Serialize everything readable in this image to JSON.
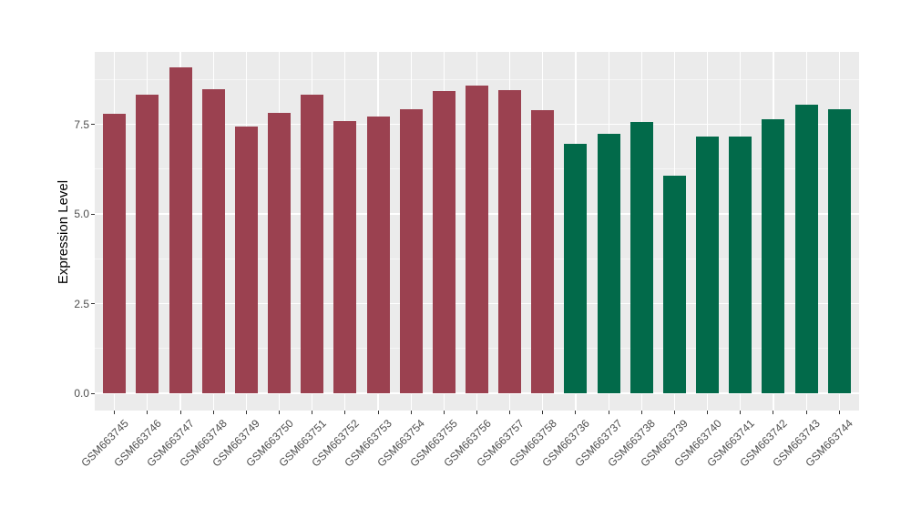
{
  "chart_data": {
    "type": "bar",
    "title": "",
    "xlabel": "",
    "ylabel": "Expression Level",
    "legend": "none",
    "grid": "on",
    "categories": [
      "GSM663745",
      "GSM663746",
      "GSM663747",
      "GSM663748",
      "GSM663749",
      "GSM663750",
      "GSM663751",
      "GSM663752",
      "GSM663753",
      "GSM663754",
      "GSM663755",
      "GSM663756",
      "GSM663757",
      "GSM663758",
      "GSM663736",
      "GSM663737",
      "GSM663738",
      "GSM663739",
      "GSM663740",
      "GSM663741",
      "GSM663742",
      "GSM663743",
      "GSM663744"
    ],
    "values": [
      7.8,
      8.32,
      9.08,
      8.47,
      7.43,
      7.82,
      8.32,
      7.59,
      7.71,
      7.92,
      8.43,
      8.57,
      8.45,
      7.89,
      6.95,
      7.24,
      7.56,
      6.06,
      7.16,
      7.16,
      7.65,
      8.04,
      7.93
    ],
    "bar_groups": [
      "maroon",
      "maroon",
      "maroon",
      "maroon",
      "maroon",
      "maroon",
      "maroon",
      "maroon",
      "maroon",
      "maroon",
      "maroon",
      "maroon",
      "maroon",
      "maroon",
      "green",
      "green",
      "green",
      "green",
      "green",
      "green",
      "green",
      "green",
      "green"
    ],
    "group_colors": {
      "maroon": "#9B4150",
      "green": "#026A4A"
    },
    "ytick_labels": [
      "0.0",
      "2.5",
      "5.0",
      "7.5"
    ],
    "ytick_values": [
      0,
      2.5,
      5.0,
      7.5
    ],
    "minor_ytick_values": [
      1.25,
      3.75,
      6.25,
      8.75
    ],
    "ylim": [
      0,
      9.52
    ],
    "panel_value_range": [
      -0.48,
      9.52
    ],
    "bar_width_ratio": 0.7,
    "theme": {
      "page_bg": "#FFFFFF",
      "panel_bg": "#EBEBEB",
      "grid_color": "#FFFFFF",
      "tick_label_color": "#4D4D4D",
      "tick_mark_color": "#333333",
      "axis_title_color": "#000000"
    }
  }
}
